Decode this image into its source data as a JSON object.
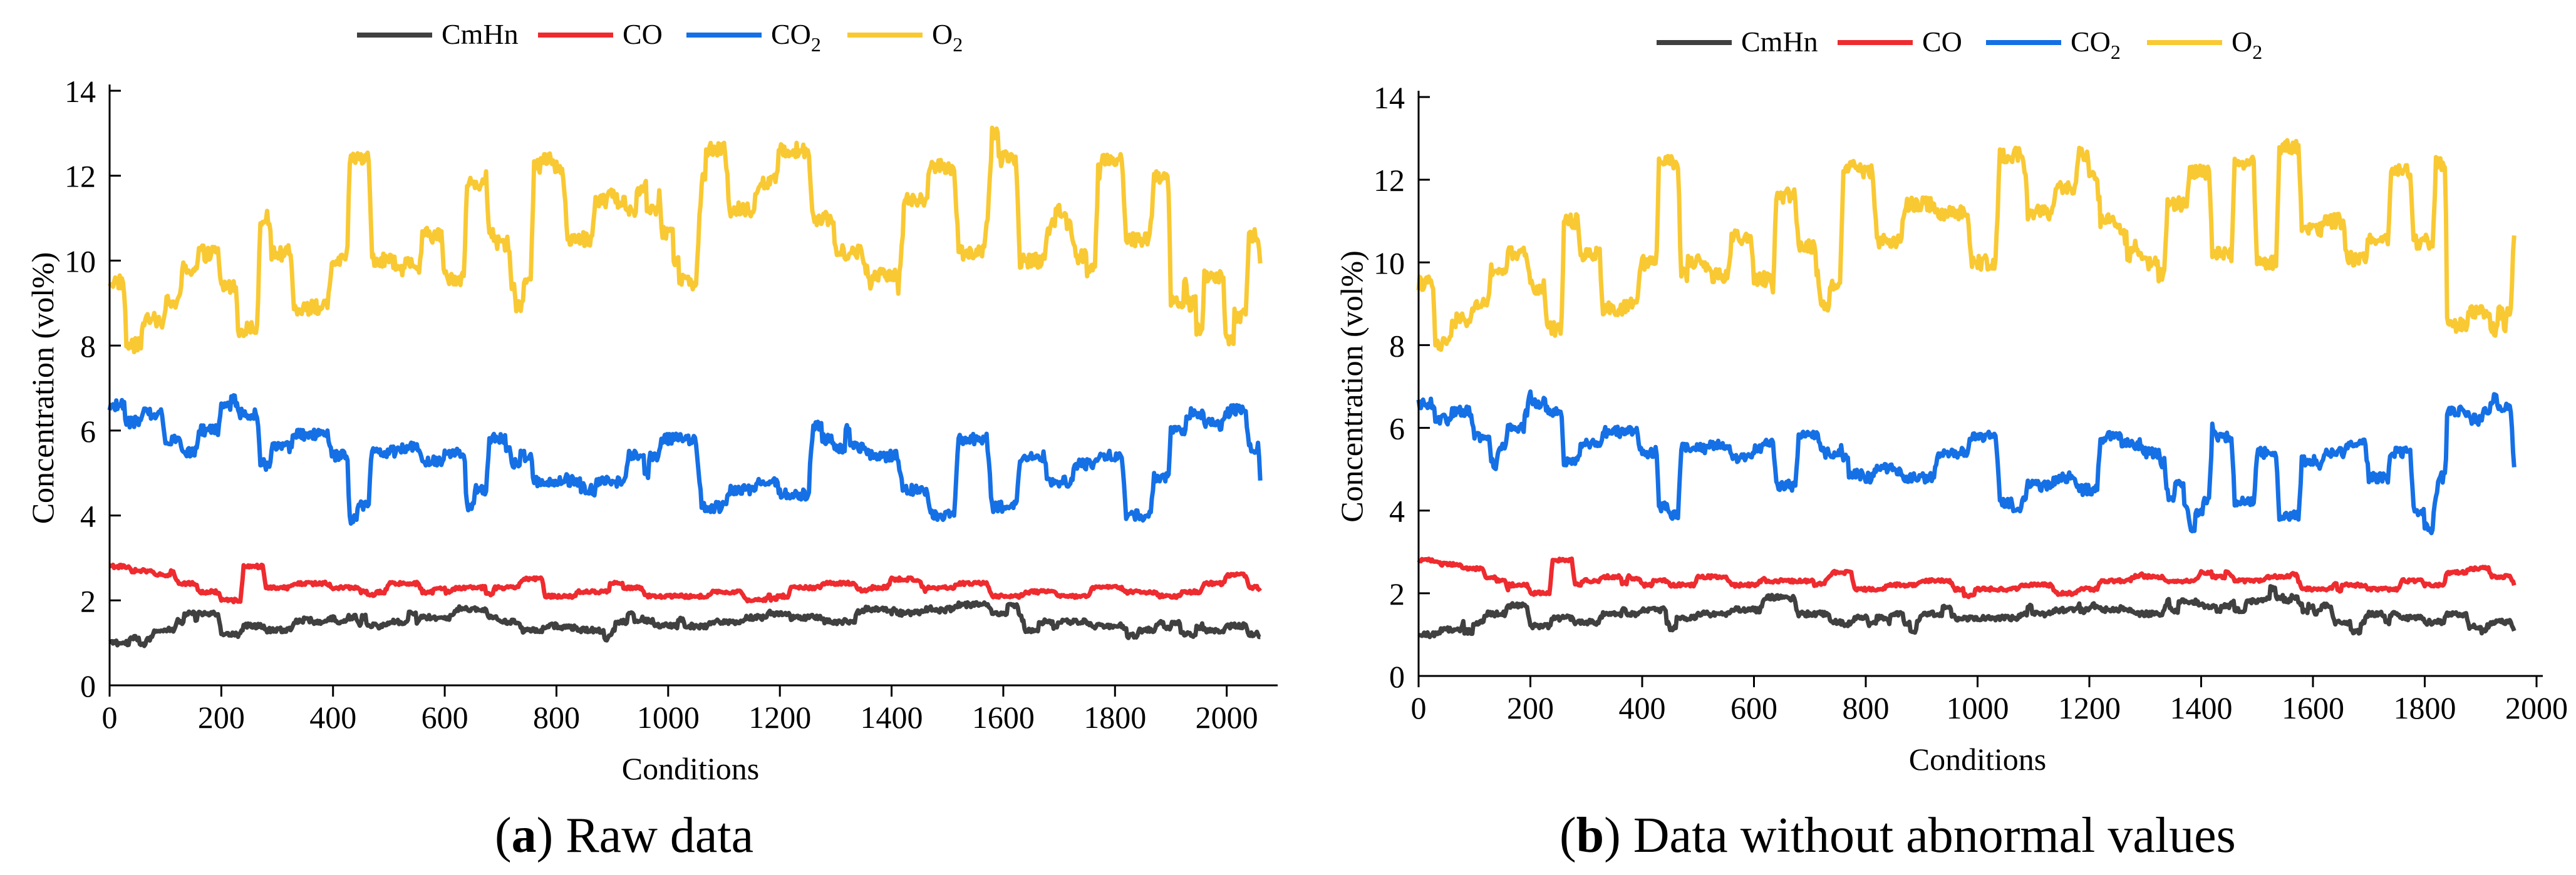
{
  "figure": {
    "colors": {
      "CmHn": "#404040",
      "CO": "#ee2b2f",
      "CO2": "#1570e6",
      "O2": "#f9c933"
    }
  },
  "chart_data": [
    {
      "type": "line",
      "panel_letter": "a",
      "caption": "Raw data",
      "xlabel": "Conditions",
      "ylabel": "Concentration (vol%)",
      "xlim": [
        0,
        2080
      ],
      "ylim": [
        0,
        14
      ],
      "xticks": [
        0,
        200,
        400,
        600,
        800,
        1000,
        1200,
        1400,
        1600,
        1800,
        2000
      ],
      "yticks": [
        0,
        2,
        4,
        6,
        8,
        10,
        12,
        14
      ],
      "n_points": 2060,
      "legend": [
        {
          "key": "CmHn",
          "label": "CmHn",
          "sub": ""
        },
        {
          "key": "CO",
          "label": "CO",
          "sub": ""
        },
        {
          "key": "CO2",
          "label": "CO",
          "sub": "2"
        },
        {
          "key": "O2",
          "label": "O",
          "sub": "2"
        }
      ],
      "series": [
        {
          "name": "O2",
          "key": "O2",
          "x": [
            0,
            30,
            60,
            100,
            130,
            160,
            200,
            230,
            270,
            290,
            330,
            400,
            430,
            470,
            520,
            560,
            600,
            640,
            680,
            720,
            760,
            820,
            870,
            930,
            990,
            1060,
            1110,
            1160,
            1200,
            1260,
            1300,
            1360,
            1420,
            1470,
            1520,
            1580,
            1630,
            1680,
            1730,
            1770,
            1820,
            1870,
            1900,
            1930,
            1960,
            2000,
            2040,
            2060
          ],
          "values": [
            9.5,
            8.0,
            8.6,
            9.0,
            9.8,
            10.2,
            9.4,
            8.4,
            11.0,
            10.2,
            8.9,
            10.0,
            12.4,
            10.0,
            9.7,
            10.6,
            9.6,
            11.8,
            10.4,
            9.5,
            12.2,
            10.5,
            11.4,
            11.2,
            10.0,
            12.6,
            11.2,
            11.8,
            12.6,
            11.0,
            10.2,
            9.7,
            11.4,
            12.2,
            10.2,
            12.4,
            10.0,
            10.8,
            10.1,
            12.4,
            10.5,
            12.0,
            9.0,
            8.4,
            9.6,
            8.7,
            10.6,
            10.0
          ]
        },
        {
          "name": "CO2",
          "key": "CO2",
          "x": [
            0,
            30,
            60,
            100,
            130,
            160,
            200,
            230,
            270,
            290,
            330,
            400,
            430,
            470,
            520,
            560,
            600,
            640,
            680,
            720,
            760,
            820,
            870,
            930,
            990,
            1060,
            1110,
            1160,
            1200,
            1260,
            1300,
            1360,
            1420,
            1470,
            1520,
            1580,
            1630,
            1680,
            1730,
            1770,
            1820,
            1870,
            1900,
            1930,
            1960,
            2000,
            2040,
            2060
          ],
          "values": [
            6.6,
            6.2,
            6.4,
            5.8,
            5.5,
            6.0,
            6.6,
            6.4,
            5.2,
            5.6,
            5.9,
            5.4,
            3.9,
            5.5,
            5.6,
            5.3,
            5.5,
            4.6,
            5.8,
            5.4,
            4.8,
            5.0,
            4.8,
            5.4,
            5.8,
            4.2,
            4.6,
            4.8,
            4.5,
            5.8,
            5.6,
            5.4,
            4.6,
            4.0,
            5.8,
            4.2,
            5.4,
            4.8,
            5.2,
            5.4,
            4.0,
            4.9,
            6.0,
            6.4,
            6.2,
            6.5,
            5.6,
            4.8
          ]
        },
        {
          "name": "CO",
          "key": "CO",
          "x": [
            0,
            40,
            80,
            120,
            160,
            200,
            240,
            280,
            330,
            400,
            450,
            500,
            560,
            620,
            680,
            740,
            780,
            840,
            900,
            960,
            1020,
            1080,
            1140,
            1180,
            1220,
            1280,
            1340,
            1400,
            1460,
            1520,
            1580,
            1640,
            1700,
            1760,
            1820,
            1880,
            1920,
            1960,
            2000,
            2040,
            2060
          ],
          "values": [
            2.8,
            2.7,
            2.6,
            2.4,
            2.2,
            2.0,
            2.8,
            2.3,
            2.4,
            2.3,
            2.2,
            2.4,
            2.2,
            2.3,
            2.3,
            2.5,
            2.1,
            2.2,
            2.3,
            2.1,
            2.1,
            2.2,
            2.0,
            2.1,
            2.3,
            2.4,
            2.3,
            2.5,
            2.3,
            2.4,
            2.1,
            2.2,
            2.1,
            2.3,
            2.2,
            2.1,
            2.2,
            2.4,
            2.6,
            2.3,
            2.2
          ]
        },
        {
          "name": "CmHn",
          "key": "CmHn",
          "x": [
            0,
            40,
            80,
            120,
            160,
            200,
            240,
            280,
            330,
            400,
            450,
            500,
            560,
            620,
            680,
            740,
            780,
            840,
            900,
            960,
            1020,
            1080,
            1140,
            1180,
            1220,
            1280,
            1340,
            1400,
            1460,
            1520,
            1580,
            1640,
            1700,
            1760,
            1820,
            1880,
            1920,
            1960,
            2000,
            2040,
            2060
          ],
          "values": [
            1.0,
            1.1,
            1.3,
            1.5,
            1.7,
            1.2,
            1.4,
            1.3,
            1.5,
            1.6,
            1.4,
            1.5,
            1.6,
            1.8,
            1.5,
            1.3,
            1.4,
            1.3,
            1.5,
            1.4,
            1.4,
            1.5,
            1.6,
            1.7,
            1.6,
            1.5,
            1.8,
            1.7,
            1.8,
            1.9,
            1.7,
            1.3,
            1.5,
            1.4,
            1.3,
            1.5,
            1.2,
            1.3,
            1.4,
            1.2,
            1.1
          ]
        }
      ]
    },
    {
      "type": "line",
      "panel_letter": "b",
      "caption": "Data without abnormal values",
      "xlabel": "Conditions",
      "ylabel": "Concentration (vol%)",
      "xlim": [
        0,
        2000
      ],
      "ylim": [
        0,
        14
      ],
      "xticks": [
        0,
        200,
        400,
        600,
        800,
        1000,
        1200,
        1400,
        1600,
        1800,
        2000
      ],
      "yticks": [
        0,
        2,
        4,
        6,
        8,
        10,
        12,
        14
      ],
      "n_points": 1960,
      "legend": [
        {
          "key": "CmHn",
          "label": "CmHn",
          "sub": ""
        },
        {
          "key": "CO",
          "label": "CO",
          "sub": ""
        },
        {
          "key": "CO2",
          "label": "CO",
          "sub": "2"
        },
        {
          "key": "O2",
          "label": "O",
          "sub": "2"
        }
      ],
      "series": [
        {
          "name": "O2",
          "key": "O2",
          "x": [
            0,
            30,
            60,
            100,
            130,
            160,
            200,
            230,
            260,
            290,
            330,
            400,
            430,
            470,
            520,
            560,
            600,
            640,
            680,
            720,
            760,
            820,
            870,
            930,
            990,
            1040,
            1090,
            1140,
            1180,
            1220,
            1260,
            1300,
            1340,
            1380,
            1420,
            1460,
            1500,
            1540,
            1580,
            1620,
            1660,
            1700,
            1740,
            1780,
            1820,
            1840,
            1880,
            1920,
            1960
          ],
          "values": [
            9.5,
            8.0,
            8.6,
            9.0,
            9.8,
            10.2,
            9.4,
            8.4,
            11.0,
            10.2,
            8.9,
            10.0,
            12.4,
            10.0,
            9.7,
            10.6,
            9.6,
            11.8,
            10.4,
            9.5,
            12.2,
            10.5,
            11.4,
            11.2,
            10.0,
            12.6,
            11.2,
            11.8,
            12.6,
            11.0,
            10.2,
            9.7,
            11.4,
            12.2,
            10.2,
            12.4,
            10.0,
            12.8,
            10.8,
            11.0,
            10.1,
            10.6,
            12.2,
            10.5,
            12.4,
            8.5,
            8.8,
            8.4,
            10.6
          ]
        },
        {
          "name": "CO2",
          "key": "CO2",
          "x": [
            0,
            30,
            60,
            100,
            130,
            160,
            200,
            230,
            260,
            290,
            330,
            400,
            430,
            470,
            520,
            560,
            600,
            640,
            680,
            720,
            760,
            820,
            870,
            930,
            990,
            1040,
            1090,
            1140,
            1180,
            1220,
            1260,
            1300,
            1340,
            1380,
            1420,
            1460,
            1500,
            1540,
            1580,
            1620,
            1660,
            1700,
            1740,
            1780,
            1820,
            1840,
            1880,
            1920,
            1960
          ],
          "values": [
            6.6,
            6.2,
            6.4,
            5.8,
            5.5,
            6.0,
            6.6,
            6.4,
            5.2,
            5.6,
            5.9,
            5.4,
            3.9,
            5.5,
            5.6,
            5.3,
            5.5,
            4.6,
            5.8,
            5.4,
            4.8,
            5.0,
            4.8,
            5.4,
            5.8,
            4.2,
            4.6,
            4.8,
            4.5,
            5.8,
            5.6,
            5.4,
            4.6,
            4.0,
            5.8,
            4.2,
            5.4,
            3.9,
            5.2,
            5.4,
            5.6,
            4.8,
            5.4,
            4.0,
            4.8,
            6.4,
            6.2,
            6.5,
            5.0
          ]
        },
        {
          "name": "CO",
          "key": "CO",
          "x": [
            0,
            40,
            80,
            120,
            160,
            200,
            240,
            280,
            330,
            400,
            450,
            500,
            560,
            620,
            680,
            740,
            780,
            840,
            900,
            960,
            1020,
            1080,
            1140,
            1180,
            1220,
            1280,
            1340,
            1400,
            1460,
            1520,
            1580,
            1640,
            1700,
            1760,
            1800,
            1840,
            1880,
            1920,
            1960
          ],
          "values": [
            2.8,
            2.7,
            2.6,
            2.4,
            2.2,
            2.0,
            2.8,
            2.3,
            2.4,
            2.3,
            2.2,
            2.4,
            2.2,
            2.3,
            2.3,
            2.5,
            2.1,
            2.2,
            2.3,
            2.1,
            2.1,
            2.2,
            2.0,
            2.1,
            2.3,
            2.4,
            2.3,
            2.5,
            2.3,
            2.4,
            2.1,
            2.2,
            2.1,
            2.3,
            2.2,
            2.5,
            2.6,
            2.4,
            2.2
          ]
        },
        {
          "name": "CmHn",
          "key": "CmHn",
          "x": [
            0,
            40,
            80,
            120,
            160,
            200,
            240,
            280,
            330,
            400,
            450,
            500,
            560,
            620,
            680,
            740,
            780,
            840,
            900,
            960,
            1020,
            1080,
            1140,
            1180,
            1220,
            1280,
            1340,
            1400,
            1460,
            1520,
            1580,
            1640,
            1700,
            1760,
            1800,
            1840,
            1880,
            1920,
            1960
          ],
          "values": [
            1.0,
            1.1,
            1.3,
            1.5,
            1.7,
            1.2,
            1.4,
            1.3,
            1.5,
            1.6,
            1.4,
            1.5,
            1.6,
            1.9,
            1.5,
            1.3,
            1.4,
            1.3,
            1.5,
            1.4,
            1.4,
            1.5,
            1.6,
            1.7,
            1.6,
            1.5,
            1.8,
            1.7,
            1.8,
            1.9,
            1.7,
            1.3,
            1.5,
            1.4,
            1.3,
            1.5,
            1.2,
            1.3,
            1.1
          ]
        }
      ]
    }
  ]
}
